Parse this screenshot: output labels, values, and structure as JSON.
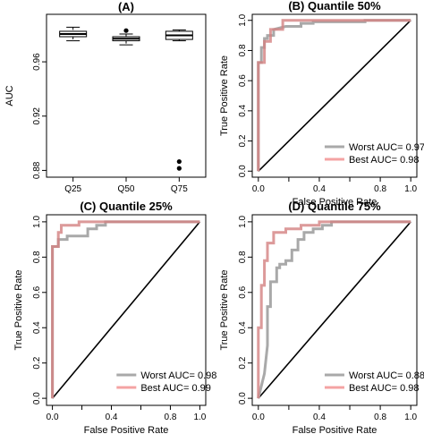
{
  "chart_data": [
    {
      "panel": "A",
      "type": "boxplot",
      "title": "(A)",
      "xlabel": "",
      "ylabel": "AUC",
      "categories": [
        "Q25",
        "Q50",
        "Q75"
      ],
      "ylim": [
        0.875,
        0.995
      ],
      "yticks": [
        0.88,
        0.92,
        0.96
      ],
      "ytick_labels": [
        "0.88",
        "0.92",
        "0.96"
      ],
      "boxes": [
        {
          "name": "Q25",
          "whisker_low": 0.9755,
          "q1": 0.9785,
          "median": 0.9805,
          "q3": 0.9825,
          "whisker_high": 0.9855,
          "outliers": []
        },
        {
          "name": "Q50",
          "whisker_low": 0.9725,
          "q1": 0.9755,
          "median": 0.977,
          "q3": 0.9785,
          "whisker_high": 0.9805,
          "outliers": [
            0.983
          ]
        },
        {
          "name": "Q75",
          "whisker_low": 0.9755,
          "q1": 0.9765,
          "median": 0.9795,
          "q3": 0.9825,
          "whisker_high": 0.9835,
          "outliers": [
            0.8865,
            0.8815
          ]
        }
      ]
    },
    {
      "panel": "B",
      "type": "line",
      "title": "(B) Quantile 50%",
      "xlabel": "False Positive Rate",
      "ylabel": "True Positive Rate",
      "xlim": [
        0,
        1
      ],
      "ylim": [
        0,
        1
      ],
      "ticks": [
        0,
        0.2,
        0.4,
        0.6,
        0.8,
        1
      ],
      "tick_labels": [
        "0.0",
        "0.2",
        "0.4",
        "0.6",
        "0.8",
        "1.0"
      ],
      "diagonal": true,
      "legend_position": "bottom-right",
      "series": [
        {
          "name": "Worst AUC=",
          "auc": "0.97",
          "color": "#a9a9a9",
          "x": [
            0,
            0,
            0.02,
            0.02,
            0.04,
            0.04,
            0.06,
            0.06,
            0.1,
            0.1,
            0.18,
            0.28,
            0.28,
            0.36,
            0.36,
            0.7,
            0.7,
            1.0
          ],
          "y": [
            0,
            0.72,
            0.72,
            0.82,
            0.82,
            0.88,
            0.88,
            0.9,
            0.9,
            0.94,
            0.96,
            0.96,
            0.98,
            0.98,
            0.99,
            0.99,
            1.0,
            1.0
          ]
        },
        {
          "name": "Best AUC=",
          "auc": "0.98",
          "color": "#f4a3a3",
          "x": [
            0,
            0,
            0.04,
            0.04,
            0.08,
            0.08,
            0.16,
            0.16,
            1.0
          ],
          "y": [
            0,
            0.72,
            0.72,
            0.86,
            0.86,
            0.94,
            0.94,
            1.0,
            1.0
          ]
        }
      ]
    },
    {
      "panel": "C",
      "type": "line",
      "title": "(C) Quantile 25%",
      "xlabel": "False Positive Rate",
      "ylabel": "True Positive Rate",
      "xlim": [
        0,
        1
      ],
      "ylim": [
        0,
        1
      ],
      "ticks": [
        0,
        0.2,
        0.4,
        0.6,
        0.8,
        1
      ],
      "tick_labels": [
        "0.0",
        "0.2",
        "0.4",
        "0.6",
        "0.8",
        "1.0"
      ],
      "diagonal": true,
      "legend_position": "bottom-right",
      "series": [
        {
          "name": "Worst AUC=",
          "auc": "0.98",
          "color": "#a9a9a9",
          "x": [
            0,
            0,
            0.04,
            0.04,
            0.1,
            0.1,
            0.24,
            0.24,
            0.3,
            0.3,
            0.36,
            0.36,
            1.0
          ],
          "y": [
            0,
            0.86,
            0.86,
            0.9,
            0.9,
            0.92,
            0.92,
            0.96,
            0.96,
            0.98,
            0.98,
            1.0,
            1.0
          ]
        },
        {
          "name": "Best AUC=",
          "auc": "0.99",
          "color": "#f4a3a3",
          "x": [
            0,
            0,
            0.04,
            0.04,
            0.06,
            0.06,
            0.18,
            0.18,
            1.0
          ],
          "y": [
            0,
            0.86,
            0.86,
            0.94,
            0.94,
            0.98,
            0.98,
            1.0,
            1.0
          ]
        }
      ]
    },
    {
      "panel": "D",
      "type": "line",
      "title": "(D) Quantile 75%",
      "xlabel": "False Positive Rate",
      "ylabel": "True Positive Rate",
      "xlim": [
        0,
        1
      ],
      "ylim": [
        0,
        1
      ],
      "ticks": [
        0,
        0.2,
        0.4,
        0.6,
        0.8,
        1
      ],
      "tick_labels": [
        "0.0",
        "0.2",
        "0.4",
        "0.6",
        "0.8",
        "1.0"
      ],
      "diagonal": true,
      "legend_position": "bottom-right",
      "series": [
        {
          "name": "Worst AUC=",
          "auc": "0.88",
          "color": "#a9a9a9",
          "x": [
            0,
            0.04,
            0.06,
            0.06,
            0.08,
            0.08,
            0.12,
            0.12,
            0.14,
            0.14,
            0.18,
            0.18,
            0.22,
            0.22,
            0.26,
            0.26,
            0.3,
            0.3,
            0.36,
            0.36,
            0.42,
            0.42,
            0.48,
            0.48,
            1.0
          ],
          "y": [
            0,
            0.14,
            0.3,
            0.52,
            0.52,
            0.66,
            0.66,
            0.74,
            0.74,
            0.76,
            0.76,
            0.78,
            0.78,
            0.84,
            0.84,
            0.9,
            0.9,
            0.94,
            0.94,
            0.96,
            0.96,
            0.98,
            0.98,
            1.0,
            1.0
          ]
        },
        {
          "name": "Best AUC=",
          "auc": "0.98",
          "color": "#f4a3a3",
          "x": [
            0,
            0,
            0.02,
            0.02,
            0.04,
            0.04,
            0.06,
            0.06,
            0.1,
            0.1,
            0.18,
            0.18,
            0.28,
            0.28,
            0.4,
            0.4,
            1.0
          ],
          "y": [
            0,
            0.4,
            0.4,
            0.64,
            0.64,
            0.78,
            0.78,
            0.88,
            0.88,
            0.94,
            0.94,
            0.96,
            0.96,
            0.98,
            0.98,
            1.0,
            1.0
          ]
        }
      ]
    }
  ]
}
